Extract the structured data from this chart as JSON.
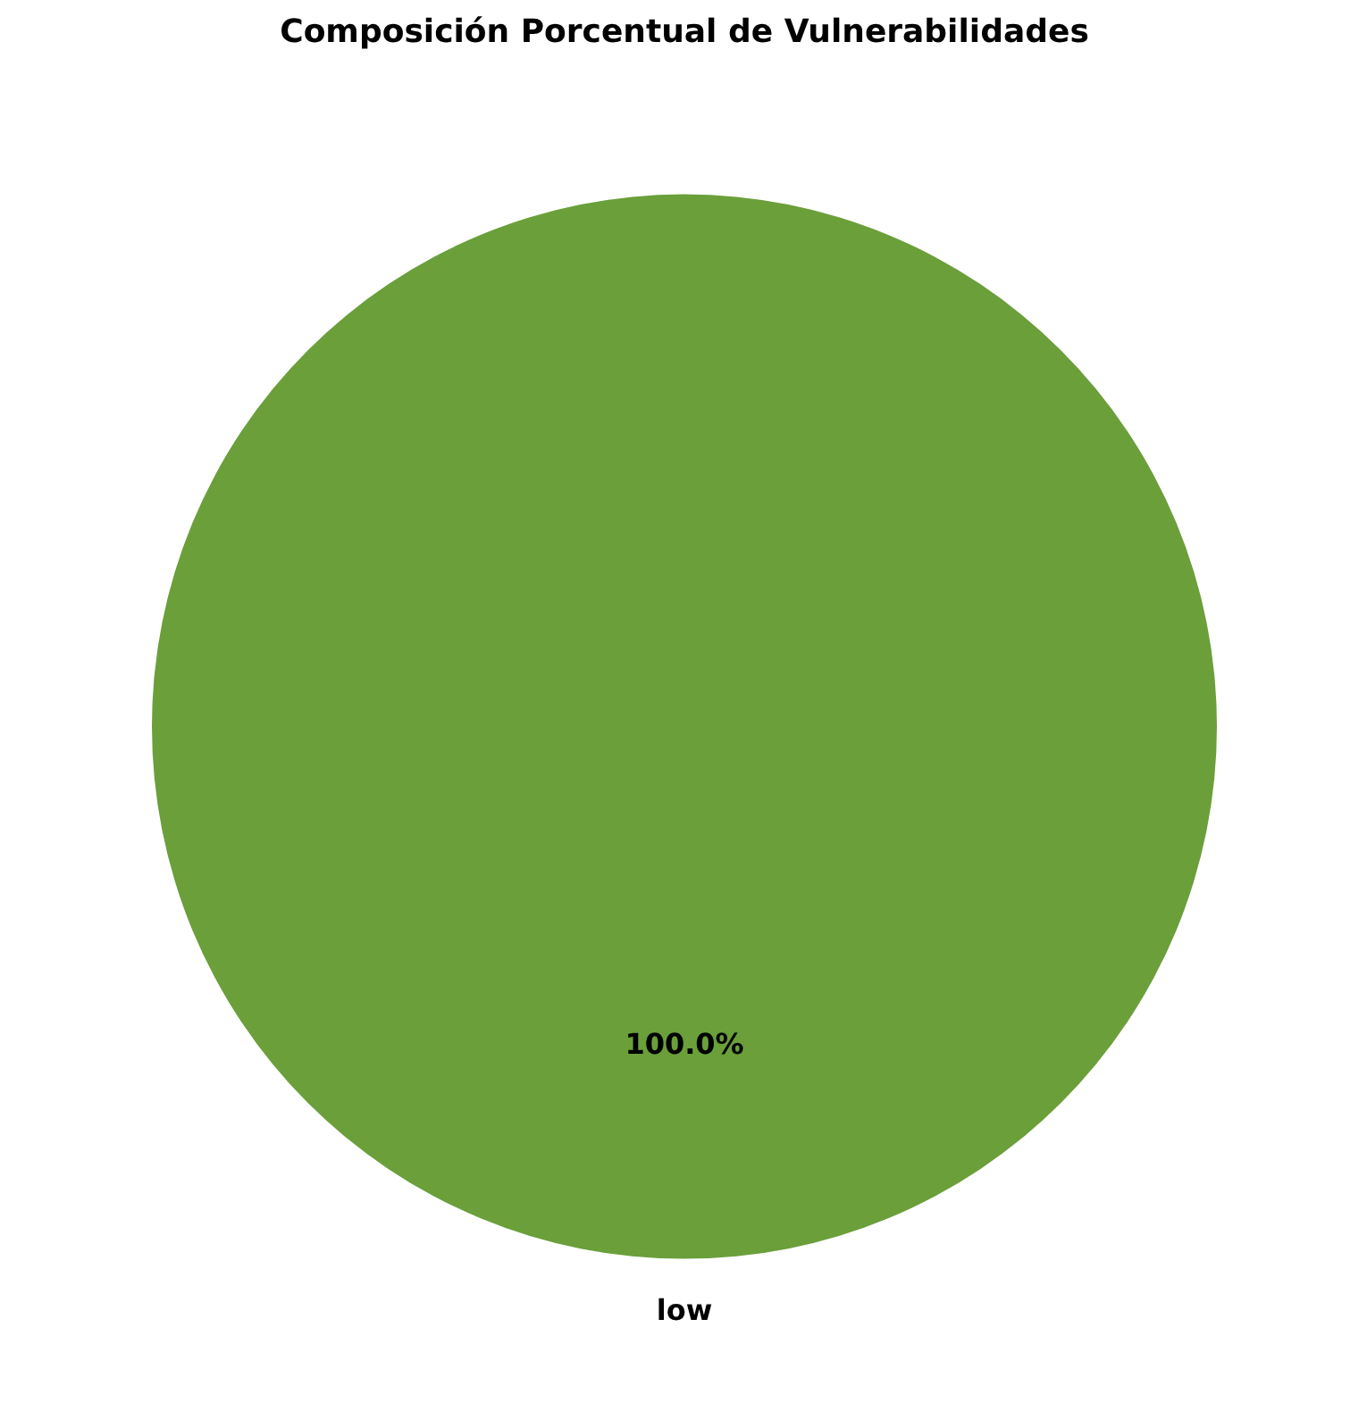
{
  "chart_data": {
    "type": "pie",
    "title": "Composición Porcentual de Vulnerabilidades",
    "categories": [
      "low"
    ],
    "values": [
      100
    ],
    "colors": [
      "#6a9f3a"
    ],
    "value_labels": [
      "100.0%"
    ],
    "legend": false
  }
}
